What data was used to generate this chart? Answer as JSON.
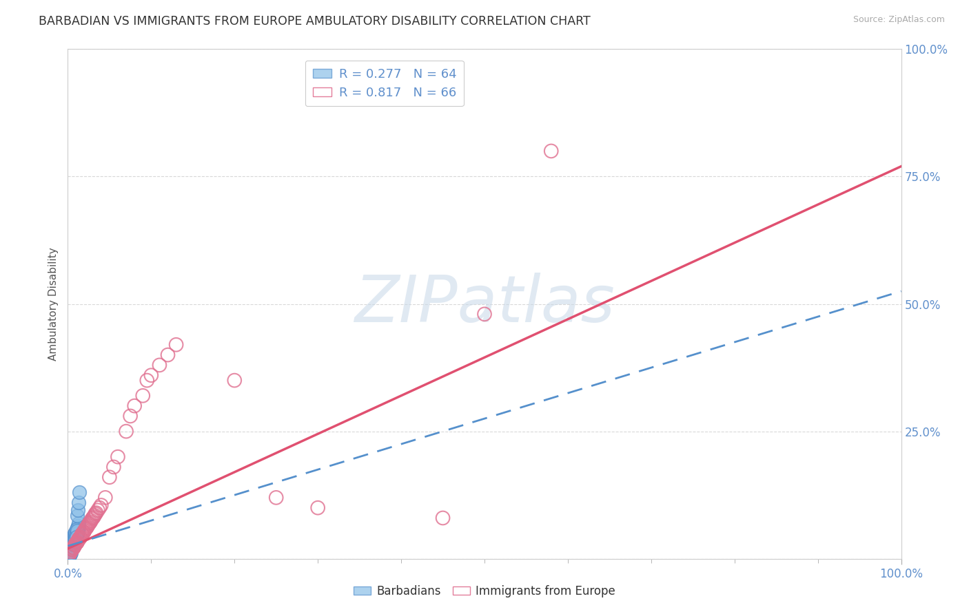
{
  "title": "BARBADIAN VS IMMIGRANTS FROM EUROPE AMBULATORY DISABILITY CORRELATION CHART",
  "source": "Source: ZipAtlas.com",
  "xlabel_bottom": "Barbadians",
  "xlabel_right": "Immigrants from Europe",
  "ylabel": "Ambulatory Disability",
  "R_barbadian": 0.277,
  "N_barbadian": 64,
  "R_europe": 0.817,
  "N_europe": 66,
  "xlim": [
    0,
    1
  ],
  "ylim": [
    0,
    1
  ],
  "x_tick_positions": [
    0,
    1.0
  ],
  "x_tick_labels": [
    "0.0%",
    "100.0%"
  ],
  "y_tick_positions": [
    0,
    0.25,
    0.5,
    0.75,
    1.0
  ],
  "y_tick_labels": [
    "",
    "25.0%",
    "50.0%",
    "75.0%",
    "100.0%"
  ],
  "barbadian_color": "#8bbfe8",
  "barbadian_edge_color": "#5590cc",
  "europe_color": "#f4b8c8",
  "europe_edge_color": "#e07090",
  "barbadian_line_color": "#5590cc",
  "europe_line_color": "#e05070",
  "watermark_text": "ZIPatlas",
  "barbadian_x": [
    0.001,
    0.002,
    0.002,
    0.003,
    0.003,
    0.003,
    0.004,
    0.004,
    0.004,
    0.005,
    0.005,
    0.005,
    0.006,
    0.006,
    0.007,
    0.007,
    0.007,
    0.008,
    0.008,
    0.008,
    0.009,
    0.009,
    0.01,
    0.01,
    0.011,
    0.011,
    0.012,
    0.012,
    0.013,
    0.013,
    0.001,
    0.002,
    0.002,
    0.003,
    0.003,
    0.004,
    0.004,
    0.005,
    0.005,
    0.006,
    0.006,
    0.007,
    0.007,
    0.008,
    0.008,
    0.009,
    0.009,
    0.01,
    0.01,
    0.011,
    0.001,
    0.002,
    0.003,
    0.004,
    0.005,
    0.006,
    0.007,
    0.008,
    0.009,
    0.01,
    0.011,
    0.012,
    0.013,
    0.014
  ],
  "barbadian_y": [
    0.005,
    0.01,
    0.015,
    0.01,
    0.02,
    0.025,
    0.015,
    0.02,
    0.03,
    0.02,
    0.03,
    0.035,
    0.025,
    0.035,
    0.03,
    0.04,
    0.045,
    0.035,
    0.045,
    0.05,
    0.04,
    0.05,
    0.045,
    0.055,
    0.05,
    0.06,
    0.055,
    0.065,
    0.06,
    0.07,
    0.005,
    0.008,
    0.012,
    0.015,
    0.022,
    0.018,
    0.025,
    0.028,
    0.032,
    0.03,
    0.038,
    0.035,
    0.042,
    0.04,
    0.048,
    0.045,
    0.052,
    0.05,
    0.058,
    0.055,
    0.003,
    0.006,
    0.009,
    0.012,
    0.018,
    0.022,
    0.028,
    0.033,
    0.038,
    0.043,
    0.085,
    0.095,
    0.11,
    0.13
  ],
  "europe_x": [
    0.001,
    0.002,
    0.003,
    0.004,
    0.005,
    0.006,
    0.007,
    0.008,
    0.009,
    0.01,
    0.011,
    0.012,
    0.013,
    0.014,
    0.015,
    0.016,
    0.017,
    0.018,
    0.019,
    0.02,
    0.022,
    0.024,
    0.026,
    0.028,
    0.03,
    0.032,
    0.034,
    0.036,
    0.038,
    0.04,
    0.001,
    0.003,
    0.005,
    0.007,
    0.009,
    0.011,
    0.013,
    0.015,
    0.017,
    0.019,
    0.021,
    0.023,
    0.025,
    0.027,
    0.029,
    0.031,
    0.033,
    0.045,
    0.05,
    0.055,
    0.06,
    0.07,
    0.075,
    0.08,
    0.09,
    0.095,
    0.1,
    0.11,
    0.12,
    0.13,
    0.2,
    0.25,
    0.3,
    0.45,
    0.5,
    0.58
  ],
  "europe_y": [
    0.005,
    0.01,
    0.012,
    0.015,
    0.018,
    0.02,
    0.022,
    0.025,
    0.028,
    0.03,
    0.032,
    0.035,
    0.038,
    0.04,
    0.042,
    0.045,
    0.048,
    0.05,
    0.052,
    0.055,
    0.06,
    0.065,
    0.07,
    0.075,
    0.08,
    0.085,
    0.09,
    0.095,
    0.1,
    0.105,
    0.005,
    0.012,
    0.018,
    0.022,
    0.028,
    0.032,
    0.038,
    0.042,
    0.048,
    0.052,
    0.058,
    0.062,
    0.068,
    0.072,
    0.078,
    0.082,
    0.088,
    0.12,
    0.16,
    0.18,
    0.2,
    0.25,
    0.28,
    0.3,
    0.32,
    0.35,
    0.36,
    0.38,
    0.4,
    0.42,
    0.35,
    0.12,
    0.1,
    0.08,
    0.48,
    0.8
  ],
  "europe_line_slope": 0.75,
  "europe_line_intercept": 0.02,
  "barbadian_line_slope": 0.5,
  "barbadian_line_intercept": 0.025,
  "grid_color": "#d8d8d8",
  "tick_color": "#6090cc",
  "spine_color": "#cccccc"
}
